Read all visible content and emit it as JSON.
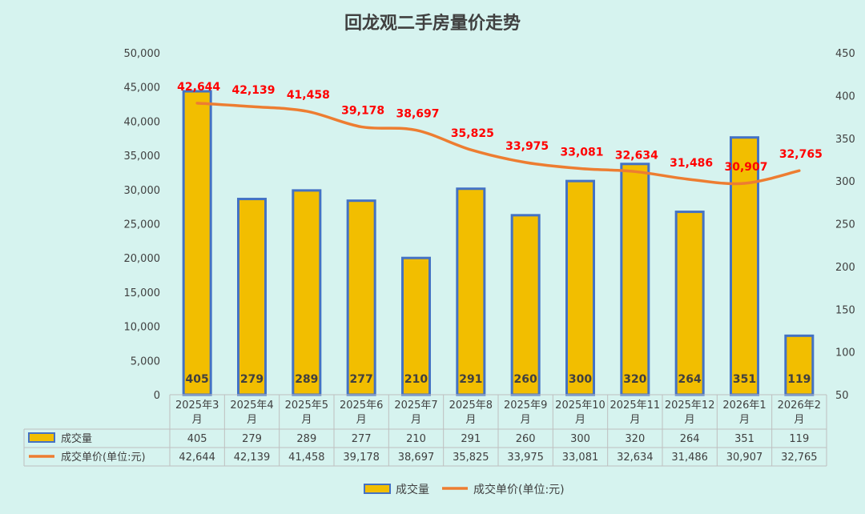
{
  "chart_data": {
    "type": "bar+line",
    "title": "回龙观二手房量价走势",
    "categories": [
      [
        "2025年3",
        "月"
      ],
      [
        "2025年4",
        "月"
      ],
      [
        "2025年5",
        "月"
      ],
      [
        "2025年6",
        "月"
      ],
      [
        "2025年7",
        "月"
      ],
      [
        "2025年8",
        "月"
      ],
      [
        "2025年9",
        "月"
      ],
      [
        "2025年10",
        "月"
      ],
      [
        "2025年11",
        "月"
      ],
      [
        "2025年12",
        "月"
      ],
      [
        "2026年1",
        "月"
      ],
      [
        "2026年2",
        "月"
      ]
    ],
    "series": [
      {
        "name": "成交量",
        "type": "bar",
        "axis": "right",
        "values": [
          405,
          279,
          289,
          277,
          210,
          291,
          260,
          300,
          320,
          264,
          351,
          119
        ],
        "labels": [
          "405",
          "279",
          "289",
          "277",
          "210",
          "291",
          "260",
          "300",
          "320",
          "264",
          "351",
          "119"
        ],
        "color": "#f2be00",
        "border": "#4472c4"
      },
      {
        "name": "成交单价(单位:元)",
        "type": "line",
        "axis": "left",
        "values": [
          42644,
          42139,
          41458,
          39178,
          38697,
          35825,
          33975,
          33081,
          32634,
          31486,
          30907,
          32765
        ],
        "labels": [
          "42,644",
          "42,139",
          "41,458",
          "39,178",
          "38,697",
          "35,825",
          "33,975",
          "33,081",
          "32,634",
          "31,486",
          "30,907",
          "32,765"
        ],
        "color": "#ed7d31",
        "label_color": "#ff0000"
      }
    ],
    "left_axis": {
      "ylim": [
        0,
        50000
      ],
      "ticks": [
        "0",
        "5,000",
        "10,000",
        "15,000",
        "20,000",
        "25,000",
        "30,000",
        "35,000",
        "40,000",
        "45,000",
        "50,000"
      ]
    },
    "right_axis": {
      "ylim": [
        50,
        450
      ],
      "ticks": [
        "50",
        "100",
        "150",
        "200",
        "250",
        "300",
        "350",
        "400",
        "450"
      ]
    },
    "legend": {
      "position": "bottom",
      "items": [
        "成交量",
        "成交单价(单位:元)"
      ]
    },
    "data_table": true,
    "grid": false
  }
}
